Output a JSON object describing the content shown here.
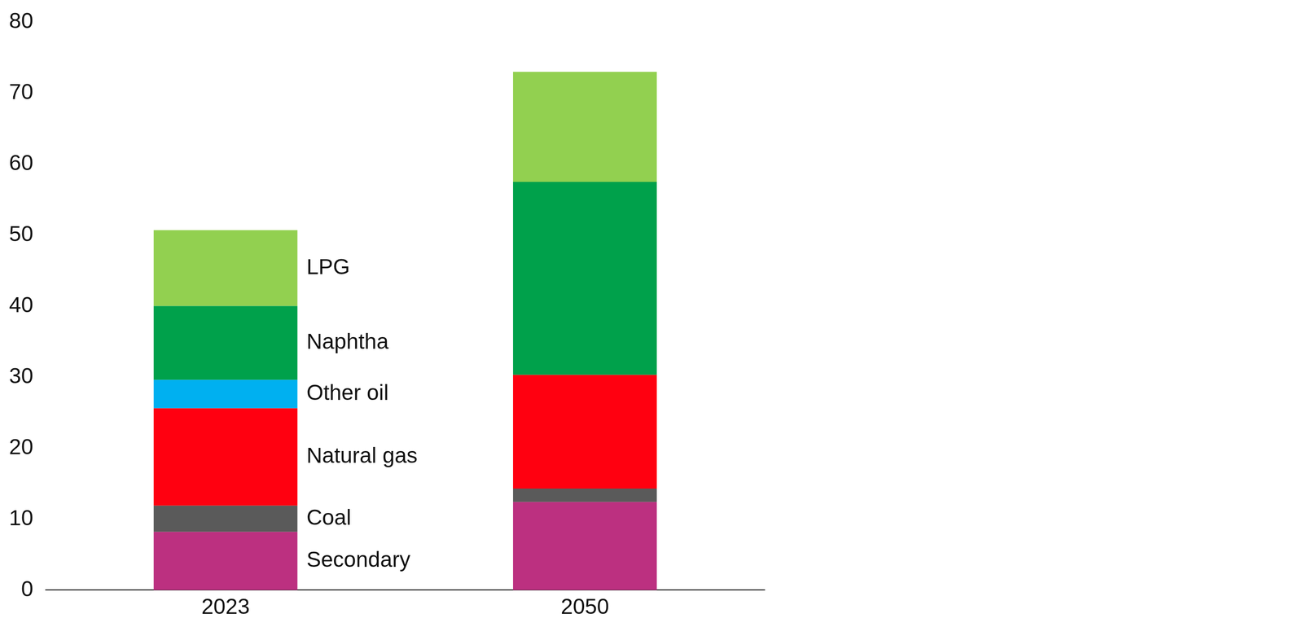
{
  "chart_data": {
    "type": "bar",
    "categories": [
      "2023",
      "2050"
    ],
    "series": [
      {
        "name": "Secondary",
        "color": "#bc3080",
        "values": [
          8.2,
          12.4
        ]
      },
      {
        "name": "Coal",
        "color": "#5a5a5a",
        "values": [
          3.7,
          1.9
        ]
      },
      {
        "name": "Natural gas",
        "color": "#ff0010",
        "values": [
          13.7,
          16.0
        ]
      },
      {
        "name": "Other oil",
        "color": "#00b0f0",
        "values": [
          4.0,
          0
        ]
      },
      {
        "name": "Naphtha",
        "color": "#00a14b",
        "values": [
          10.4,
          27.2
        ]
      },
      {
        "name": "LPG",
        "color": "#92d050",
        "values": [
          10.7,
          15.5
        ]
      }
    ],
    "ylim": [
      0,
      80
    ],
    "yticks": [
      0,
      10,
      20,
      30,
      40,
      50,
      60,
      70,
      80
    ],
    "stacked": true,
    "grid": false
  }
}
